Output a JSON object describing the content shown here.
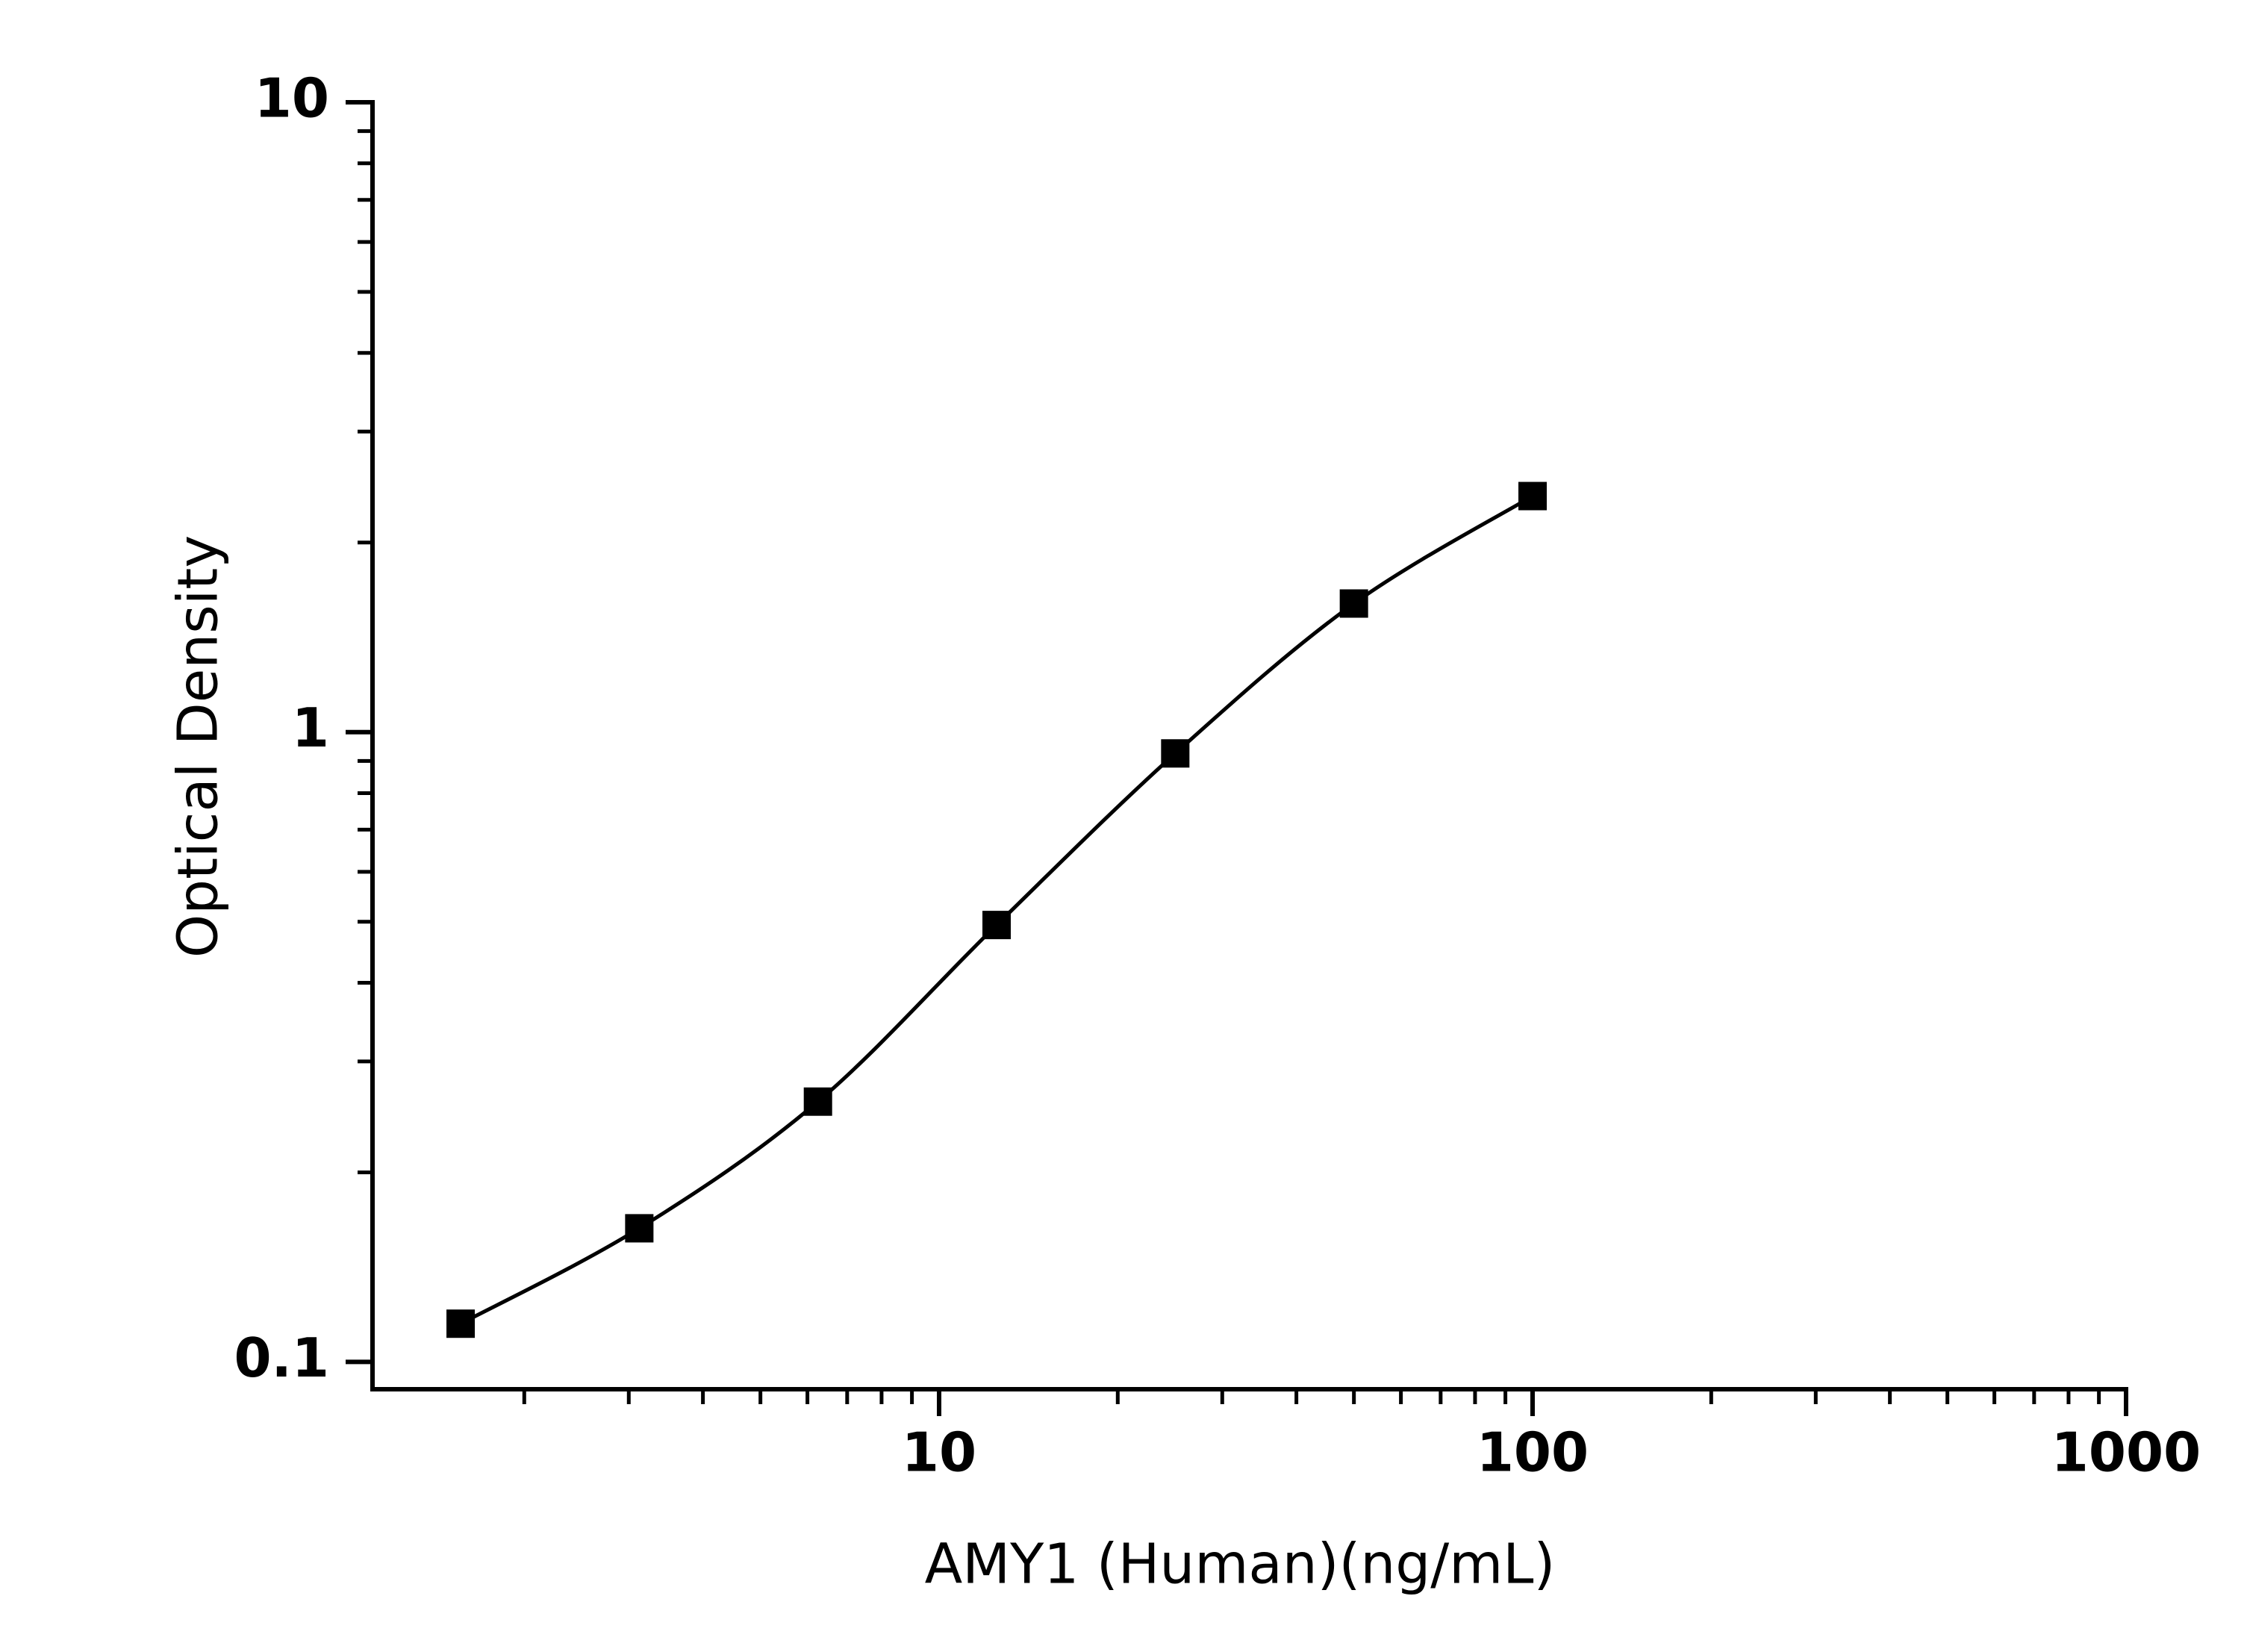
{
  "chart_data": {
    "type": "line",
    "x_label": "AMY1 (Human)(ng/mL)",
    "y_label": "Optical Density",
    "x": [
      1.5625,
      3.125,
      6.25,
      12.5,
      25,
      50,
      100
    ],
    "series": [
      {
        "color": "#000000",
        "marker": "square",
        "values": [
          0.115,
          0.163,
          0.259,
          0.494,
          0.925,
          1.6,
          2.37
        ]
      }
    ],
    "xscale": "log",
    "yscale": "log",
    "xlim": [
      1.11,
      1000
    ],
    "ylim": [
      0.0905,
      10
    ],
    "xticks": [
      10,
      100,
      1000
    ],
    "yticks": [
      0.1,
      1,
      10
    ],
    "xminorticks": [
      2,
      3,
      4,
      5,
      6,
      7,
      8,
      9,
      20,
      30,
      40,
      50,
      60,
      70,
      80,
      90,
      200,
      300,
      400,
      500,
      600,
      700,
      800,
      900
    ],
    "yminorticks": [
      0.2,
      0.3,
      0.4,
      0.5,
      0.6,
      0.7,
      0.8,
      0.9,
      2,
      3,
      4,
      5,
      6,
      7,
      8,
      9
    ],
    "grid": false
  }
}
